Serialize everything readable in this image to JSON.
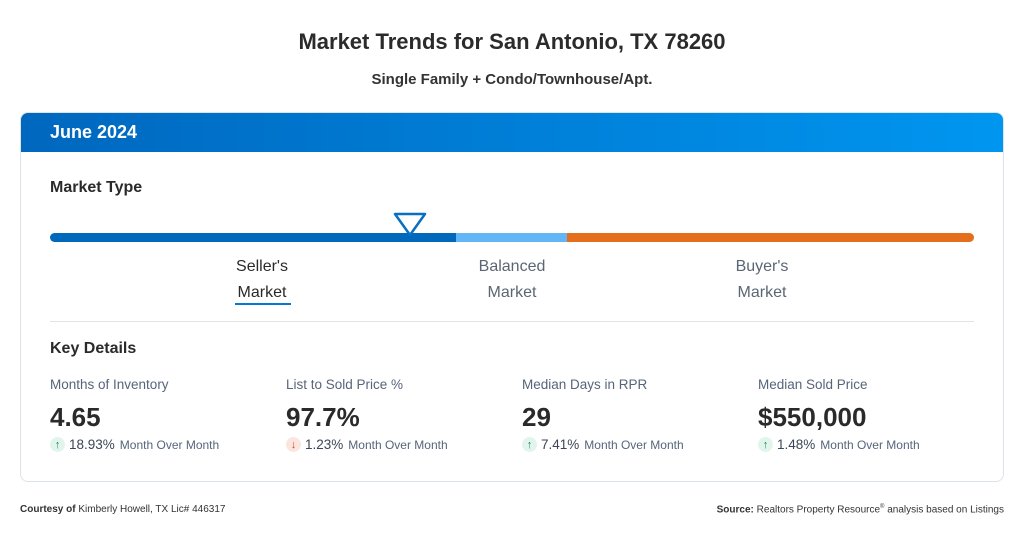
{
  "header": {
    "title": "Market Trends for San Antonio, TX 78260",
    "subtitle": "Single Family + Condo/Townhouse/Apt."
  },
  "card": {
    "period": "June 2024",
    "accent_color": "#0078d4"
  },
  "market_type": {
    "title": "Market Type",
    "indicator_position_fraction": 0.39,
    "segments": [
      {
        "label_line1": "Seller's",
        "label_line2": "Market",
        "color": "#0069bb",
        "selected": true
      },
      {
        "label_line1": "Balanced",
        "label_line2": "Market",
        "color": "#62b6f5"
      },
      {
        "label_line1": "Buyer's",
        "label_line2": "Market",
        "color": "#e56e1c"
      }
    ]
  },
  "key_details": {
    "title": "Key Details",
    "metrics": [
      {
        "label": "Months of Inventory",
        "value": "4.65",
        "direction": "up",
        "change": "18.93%",
        "period": "Month Over Month"
      },
      {
        "label": "List to Sold Price %",
        "value": "97.7%",
        "direction": "down",
        "change": "1.23%",
        "period": "Month Over Month"
      },
      {
        "label": "Median Days in RPR",
        "value": "29",
        "direction": "up",
        "change": "7.41%",
        "period": "Month Over Month"
      },
      {
        "label": "Median Sold Price",
        "value": "$550,000",
        "direction": "up",
        "change": "1.48%",
        "period": "Month Over Month"
      }
    ]
  },
  "footer": {
    "courtesy_label": "Courtesy of",
    "courtesy_text": "Kimberly Howell, TX Lic# 446317",
    "source_label": "Source:",
    "source_text": "Realtors Property Resource",
    "source_mark": "®",
    "source_suffix": "analysis based on Listings"
  }
}
